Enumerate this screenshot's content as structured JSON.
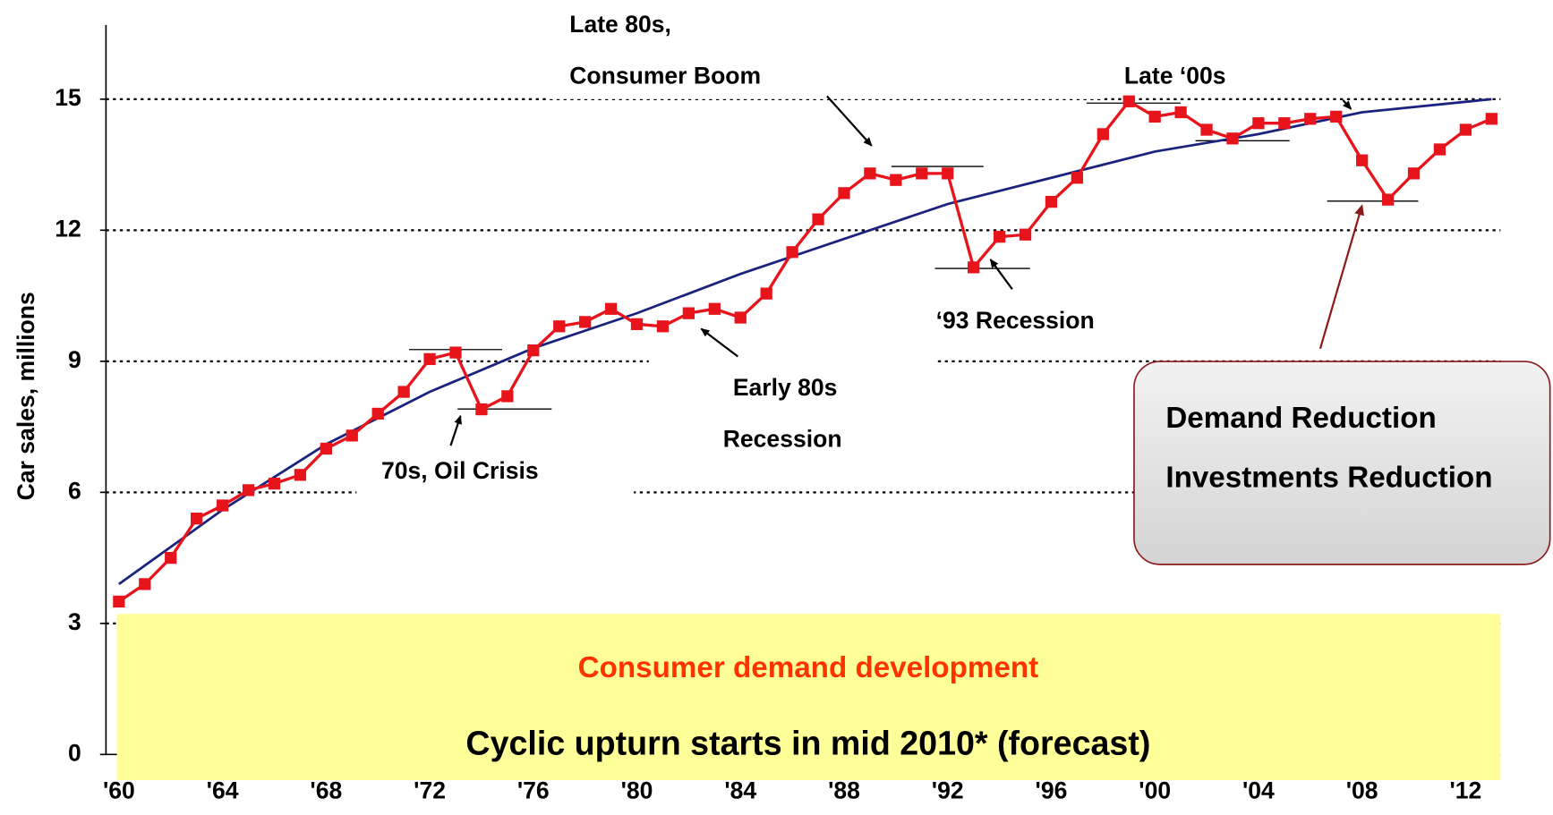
{
  "chart_data": {
    "type": "line",
    "y_label": "Car sales, millions",
    "x": [
      1960,
      1961,
      1962,
      1963,
      1964,
      1965,
      1966,
      1967,
      1968,
      1969,
      1970,
      1971,
      1972,
      1973,
      1974,
      1975,
      1976,
      1977,
      1978,
      1979,
      1980,
      1981,
      1982,
      1983,
      1984,
      1985,
      1986,
      1987,
      1988,
      1989,
      1990,
      1991,
      1992,
      1993,
      1994,
      1995,
      1996,
      1997,
      1998,
      1999,
      2000,
      2001,
      2002,
      2003,
      2004,
      2005,
      2006,
      2007,
      2008,
      2009,
      2010,
      2011,
      2012,
      2013
    ],
    "series": [
      {
        "color": "#e8141c",
        "values": [
          3.5,
          3.9,
          4.5,
          5.4,
          5.7,
          6.05,
          6.2,
          6.4,
          7.0,
          7.3,
          7.8,
          8.3,
          9.05,
          9.2,
          7.9,
          8.2,
          9.25,
          9.8,
          9.9,
          10.2,
          9.85,
          9.8,
          10.1,
          10.2,
          10.0,
          10.55,
          11.5,
          12.25,
          12.85,
          13.3,
          13.15,
          13.3,
          13.3,
          11.15,
          11.85,
          11.9,
          12.65,
          13.2,
          14.2,
          14.95,
          14.6,
          14.7,
          14.3,
          14.1,
          14.45,
          14.45,
          14.55,
          14.6,
          13.6,
          12.7,
          13.3,
          13.85,
          14.3,
          14.55
        ]
      }
    ],
    "trend": {
      "color": "#1a237e",
      "x": [
        1960,
        1964,
        1968,
        1972,
        1976,
        1980,
        1984,
        1988,
        1992,
        1996,
        2000,
        2004,
        2008,
        2013
      ],
      "values": [
        3.9,
        5.6,
        7.1,
        8.3,
        9.3,
        10.1,
        11.0,
        11.8,
        12.6,
        13.2,
        13.8,
        14.2,
        14.7,
        15.0
      ]
    },
    "xlim": [
      1959.5,
      2013.5
    ],
    "xticks": [
      {
        "value": 1960,
        "label": "'60"
      },
      {
        "value": 1964,
        "label": "'64"
      },
      {
        "value": 1968,
        "label": "'68"
      },
      {
        "value": 1972,
        "label": "'72"
      },
      {
        "value": 1976,
        "label": "'76"
      },
      {
        "value": 1980,
        "label": "'80"
      },
      {
        "value": 1984,
        "label": "'84"
      },
      {
        "value": 1988,
        "label": "'88"
      },
      {
        "value": 1992,
        "label": "'92"
      },
      {
        "value": 1996,
        "label": "'96"
      },
      {
        "value": 2000,
        "label": "'00"
      },
      {
        "value": 2004,
        "label": "'04"
      },
      {
        "value": 2008,
        "label": "'08"
      },
      {
        "value": 2012,
        "label": "'12"
      }
    ],
    "ylim": [
      0,
      16.7
    ],
    "yticks": [
      0,
      3,
      6,
      9,
      12,
      15
    ],
    "grid": true,
    "annotations": [
      "Late 80s,",
      "Consumer Boom",
      "Late ‘00s",
      "‘93 Recession",
      "Early 80s",
      "Recession",
      "70s, Oil Crisis"
    ],
    "box_texts": [
      "Demand Reduction",
      "Investments Reduction"
    ],
    "banner": {
      "title": "Consumer demand development",
      "text": "Cyclic upturn starts in mid 2010* (forecast)"
    }
  }
}
